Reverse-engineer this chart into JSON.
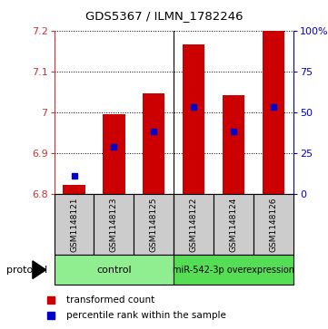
{
  "title": "GDS5367 / ILMN_1782246",
  "samples": [
    "GSM1148121",
    "GSM1148123",
    "GSM1148125",
    "GSM1148122",
    "GSM1148124",
    "GSM1148126"
  ],
  "bar_bottoms": [
    6.8,
    6.8,
    6.8,
    6.8,
    6.8,
    6.8
  ],
  "bar_tops": [
    6.823,
    6.997,
    7.047,
    7.168,
    7.043,
    7.2
  ],
  "percentile_values": [
    6.845,
    6.916,
    6.955,
    7.013,
    6.954,
    7.015
  ],
  "bar_color": "#cc0000",
  "marker_color": "#0000cc",
  "ylim_min": 6.8,
  "ylim_max": 7.2,
  "yticks_left": [
    6.8,
    6.9,
    7.0,
    7.1,
    7.2
  ],
  "yticks_right": [
    0,
    25,
    50,
    75,
    100
  ],
  "groups": [
    {
      "label": "control",
      "color": "#90ee90",
      "n": 3
    },
    {
      "label": "miR-542-3p overexpression",
      "color": "#55dd55",
      "n": 3
    }
  ],
  "protocol_label": "protocol",
  "legend_bar_label": "transformed count",
  "legend_marker_label": "percentile rank within the sample",
  "sample_box_color": "#cccccc"
}
